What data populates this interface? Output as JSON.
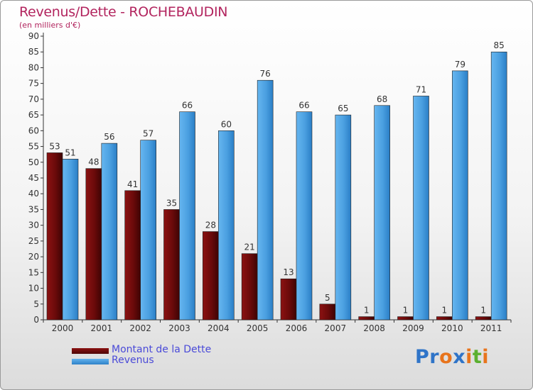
{
  "title": "Revenus/Dette - ROCHEBAUDIN",
  "subtitle": "(en milliers d'€)",
  "chart_data": {
    "type": "bar",
    "title": "Revenus/Dette - ROCHEBAUDIN",
    "ylabel": "(en milliers d'€)",
    "xlabel": "",
    "ylim": [
      0,
      90
    ],
    "ytick_step": 5,
    "grid": false,
    "legend_position": "bottom",
    "categories": [
      "2000",
      "2001",
      "2002",
      "2003",
      "2004",
      "2005",
      "2006",
      "2007",
      "2008",
      "2009",
      "2010",
      "2011"
    ],
    "series": [
      {
        "name": "Montant de la Dette",
        "color": "#7a0e0e",
        "values": [
          53,
          48,
          41,
          35,
          28,
          21,
          13,
          5,
          1,
          1,
          1,
          1
        ]
      },
      {
        "name": "Revenus",
        "color": "#4a9fe0",
        "values": [
          51,
          56,
          57,
          66,
          60,
          76,
          66,
          65,
          68,
          71,
          79,
          85
        ]
      }
    ]
  },
  "legend": {
    "debt_label": "Montant de la Dette",
    "revenue_label": "Revenus"
  },
  "logo": {
    "letters": [
      "P",
      "r",
      "o",
      "x",
      "i",
      "t",
      "i"
    ],
    "colors": [
      "#2f74c8",
      "#2f74c8",
      "#e8741c",
      "#2f74c8",
      "#e8741c",
      "#5bb030",
      "#e8741c"
    ]
  }
}
